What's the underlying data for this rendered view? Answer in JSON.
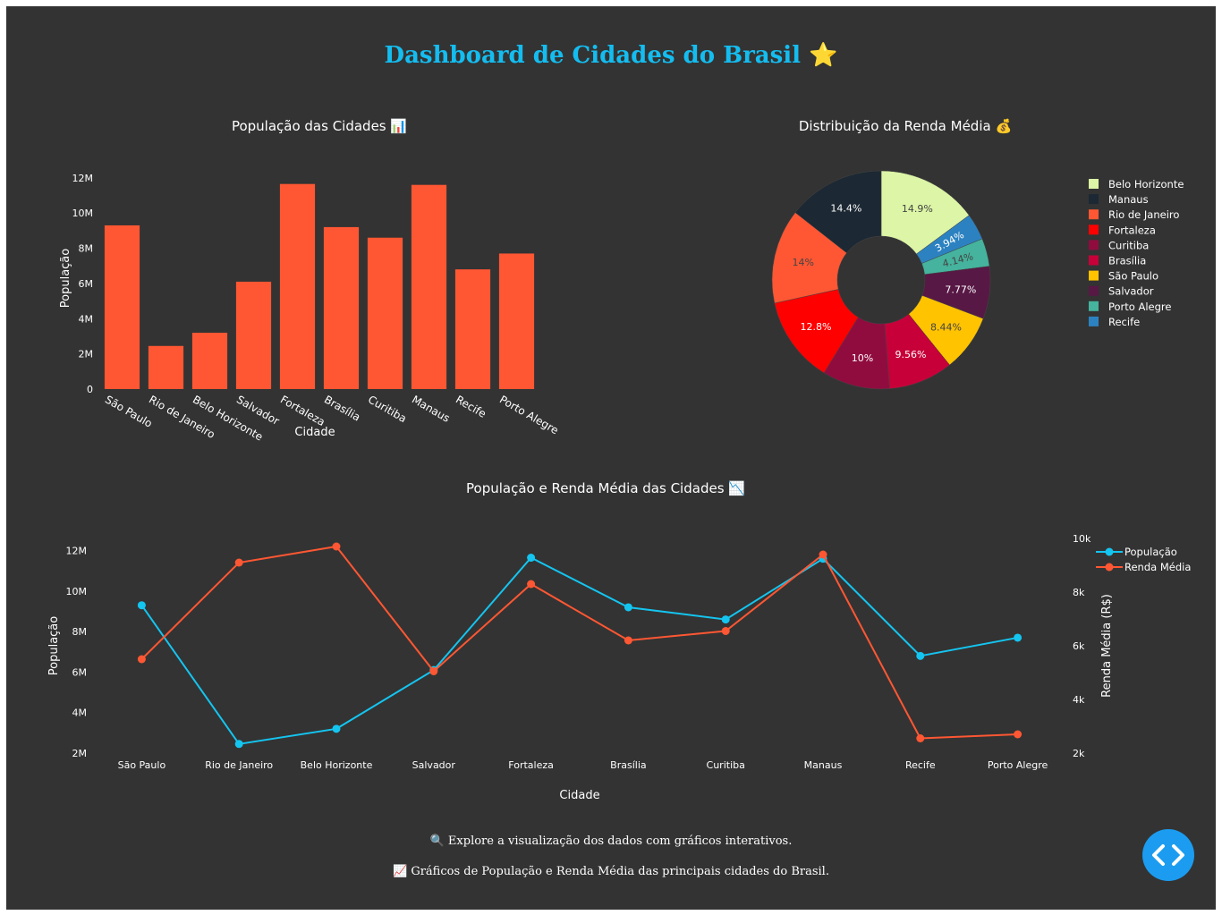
{
  "title": "Dashboard de Cidades do Brasil ⭐",
  "footer": {
    "line1": "🔍 Explore a visualização dos dados com gráficos interativos.",
    "line2": "📈 Gráficos de População e Renda Média das principais cidades do Brasil."
  },
  "colors": {
    "background": "#333333",
    "title": "#14bdf0",
    "bar": "#ff5733",
    "population_line": "#14c5f0",
    "income_line": "#ff5733",
    "button": "#1b9cf0"
  },
  "icons": {
    "code_button": "code-brackets-icon"
  },
  "chart_data": [
    {
      "type": "bar",
      "title": "População das Cidades 📊",
      "xlabel": "Cidade",
      "ylabel": "População",
      "categories": [
        "São Paulo",
        "Rio de Janeiro",
        "Belo Horizonte",
        "Salvador",
        "Fortaleza",
        "Brasília",
        "Curitiba",
        "Manaus",
        "Recife",
        "Porto Alegre"
      ],
      "values": [
        9300000,
        2450000,
        3200000,
        6100000,
        11650000,
        9200000,
        8600000,
        11600000,
        6800000,
        7700000
      ],
      "ylim": [
        0,
        12600000
      ],
      "yticks": [
        0,
        2000000,
        4000000,
        6000000,
        8000000,
        10000000,
        12000000
      ],
      "ytick_labels": [
        "0",
        "2M",
        "4M",
        "6M",
        "8M",
        "10M",
        "12M"
      ],
      "grid": false
    },
    {
      "type": "pie",
      "title": "Distribuição da Renda Média 💰",
      "hole": true,
      "legend_position": "right",
      "slices": [
        {
          "label": "Belo Horizonte",
          "percent": "14.9%",
          "value": 14.9,
          "color": "#dcf5a6"
        },
        {
          "label": "Recife",
          "percent": "3.94%",
          "value": 3.94,
          "color": "#2c82c0"
        },
        {
          "label": "Porto Alegre",
          "percent": "4.14%",
          "value": 4.14,
          "color": "#45b39d"
        },
        {
          "label": "Salvador",
          "percent": "7.77%",
          "value": 7.77,
          "color": "#581845"
        },
        {
          "label": "São Paulo",
          "percent": "8.44%",
          "value": 8.44,
          "color": "#ffc300"
        },
        {
          "label": "Brasília",
          "percent": "9.56%",
          "value": 9.56,
          "color": "#c70039"
        },
        {
          "label": "Curitiba",
          "percent": "10%",
          "value": 10.0,
          "color": "#900c3f"
        },
        {
          "label": "Fortaleza",
          "percent": "12.8%",
          "value": 12.8,
          "color": "#ff0000"
        },
        {
          "label": "Rio de Janeiro",
          "percent": "14%",
          "value": 14.0,
          "color": "#ff5733"
        },
        {
          "label": "Manaus",
          "percent": "14.4%",
          "value": 14.4,
          "color": "#1c2833"
        }
      ],
      "legend": [
        "Belo Horizonte",
        "Manaus",
        "Rio de Janeiro",
        "Fortaleza",
        "Curitiba",
        "Brasília",
        "São Paulo",
        "Salvador",
        "Porto Alegre",
        "Recife"
      ]
    },
    {
      "type": "line",
      "title": "População e Renda Média das Cidades 📉",
      "xlabel": "Cidade",
      "ylabel": "População",
      "y2label": "Renda Média (R$)",
      "categories": [
        "São Paulo",
        "Rio de Janeiro",
        "Belo Horizonte",
        "Salvador",
        "Fortaleza",
        "Brasília",
        "Curitiba",
        "Manaus",
        "Recife",
        "Porto Alegre"
      ],
      "ylim": [
        2000000,
        12600000
      ],
      "yticks": [
        2000000,
        4000000,
        6000000,
        8000000,
        10000000,
        12000000
      ],
      "ytick_labels": [
        "2M",
        "4M",
        "6M",
        "8M",
        "10M",
        "12M"
      ],
      "y2lim": [
        2000,
        10000
      ],
      "y2ticks": [
        2000,
        4000,
        6000,
        8000,
        10000
      ],
      "y2tick_labels": [
        "2k",
        "4k",
        "6k",
        "8k",
        "10k"
      ],
      "legend_position": "top-right",
      "series": [
        {
          "name": "População",
          "axis": "y",
          "color": "#14c5f0",
          "values": [
            9300000,
            2450000,
            3200000,
            6100000,
            11650000,
            9200000,
            8600000,
            11600000,
            6800000,
            7700000
          ]
        },
        {
          "name": "Renda Média",
          "axis": "y2",
          "color": "#ff5733",
          "values": [
            5500,
            9100,
            9700,
            5050,
            8300,
            6200,
            6550,
            9400,
            2550,
            2700
          ]
        }
      ],
      "grid": false
    }
  ]
}
